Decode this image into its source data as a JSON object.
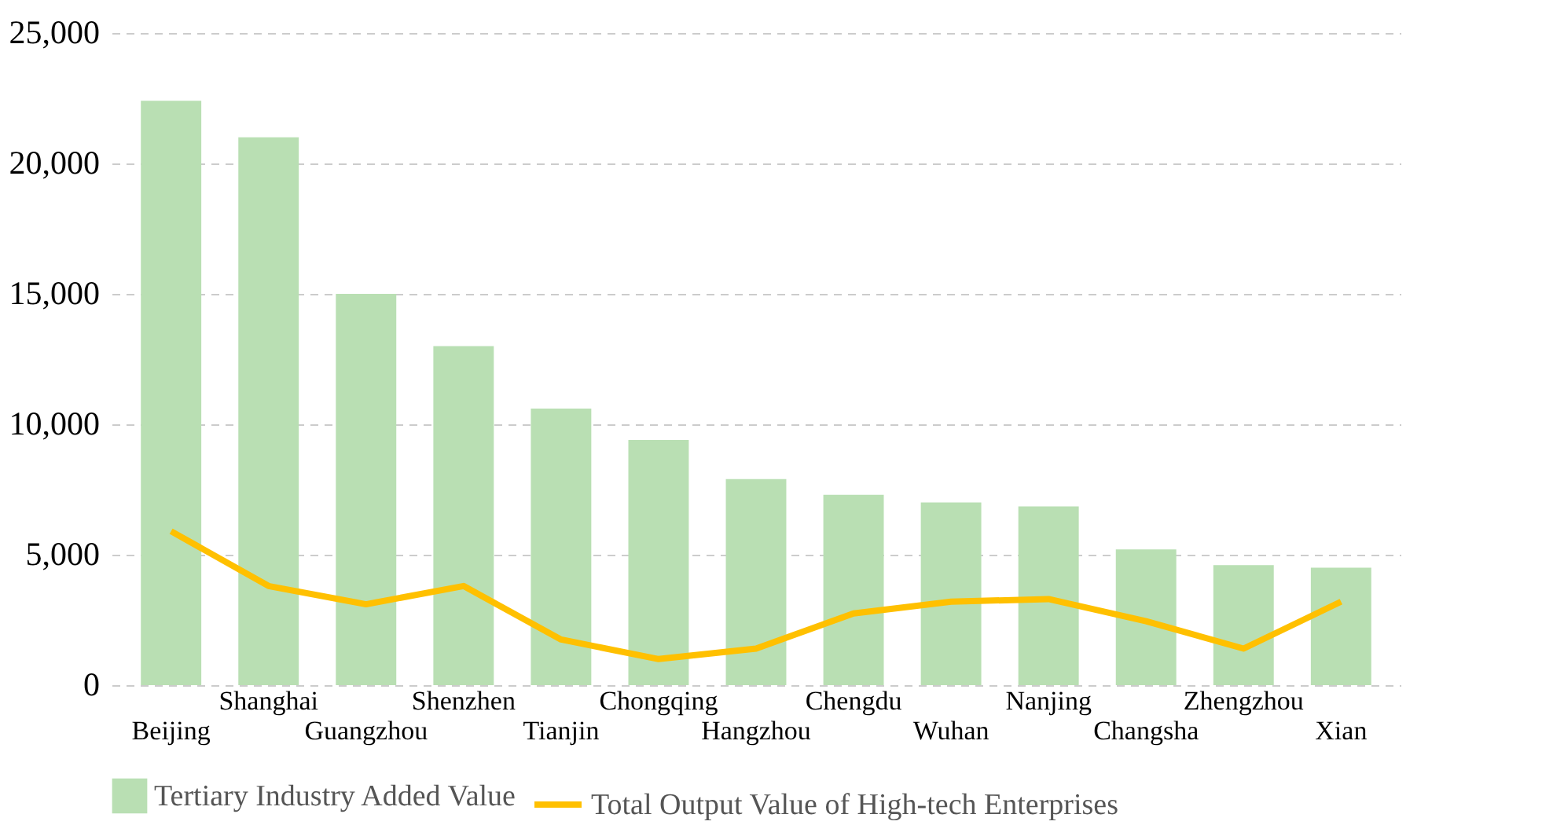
{
  "chart_data": {
    "type": "bar",
    "categories": [
      "Beijing",
      "Shanghai",
      "Guangzhou",
      "Shenzhen",
      "Tianjin",
      "Chongqing",
      "Hangzhou",
      "Chengdu",
      "Wuhan",
      "Nanjing",
      "Changsha",
      "Zhengzhou",
      "Xian"
    ],
    "series": [
      {
        "name": "Tertiary Industry Added Value",
        "color": "#b9dfb3",
        "values": [
          22400,
          21000,
          15000,
          13000,
          10600,
          9400,
          7900,
          7300,
          7000,
          6850,
          5200,
          4600,
          4500
        ]
      },
      {
        "name": "Total Output Value of High-tech Enterprises",
        "type": "line",
        "color": "#ffc000",
        "values": [
          5900,
          3800,
          3100,
          3800,
          1750,
          1000,
          1400,
          2750,
          3200,
          3300,
          2450,
          1400,
          3200
        ]
      }
    ],
    "ylim": [
      0,
      25000
    ],
    "yticks": [
      0,
      {
        "value": 5000,
        "label": "5,000"
      },
      {
        "value": 10000,
        "label": "10,000"
      },
      {
        "value": 15000,
        "label": "15,000"
      },
      {
        "value": 20000,
        "label": "20,000"
      },
      {
        "value": 25000,
        "label": "25,000"
      }
    ],
    "grid": "y",
    "legend": "bottom",
    "marker": "none",
    "line_style": "solid"
  }
}
